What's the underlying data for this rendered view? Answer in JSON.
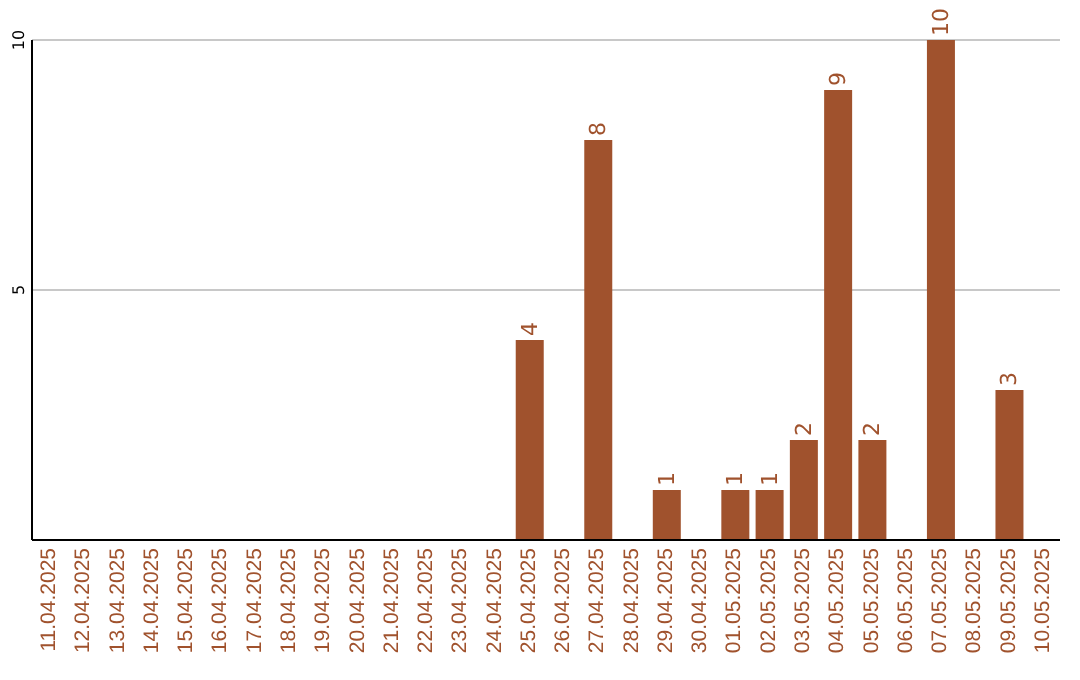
{
  "chart_data": {
    "type": "bar",
    "categories": [
      "11.04.2025",
      "12.04.2025",
      "13.04.2025",
      "14.04.2025",
      "15.04.2025",
      "16.04.2025",
      "17.04.2025",
      "18.04.2025",
      "19.04.2025",
      "20.04.2025",
      "21.04.2025",
      "22.04.2025",
      "23.04.2025",
      "24.04.2025",
      "25.04.2025",
      "26.04.2025",
      "27.04.2025",
      "28.04.2025",
      "29.04.2025",
      "30.04.2025",
      "01.05.2025",
      "02.05.2025",
      "03.05.2025",
      "04.05.2025",
      "05.05.2025",
      "06.05.2025",
      "07.05.2025",
      "08.05.2025",
      "09.05.2025",
      "10.05.2025"
    ],
    "values": [
      null,
      null,
      null,
      null,
      null,
      null,
      null,
      null,
      null,
      null,
      null,
      null,
      null,
      null,
      4,
      null,
      8,
      null,
      1,
      null,
      1,
      1,
      2,
      9,
      2,
      null,
      10,
      null,
      3,
      null
    ],
    "color": "#a0522d",
    "ylim": [
      0,
      10
    ],
    "yticks": [
      5,
      10
    ],
    "grid": "y",
    "data_labels": true
  }
}
